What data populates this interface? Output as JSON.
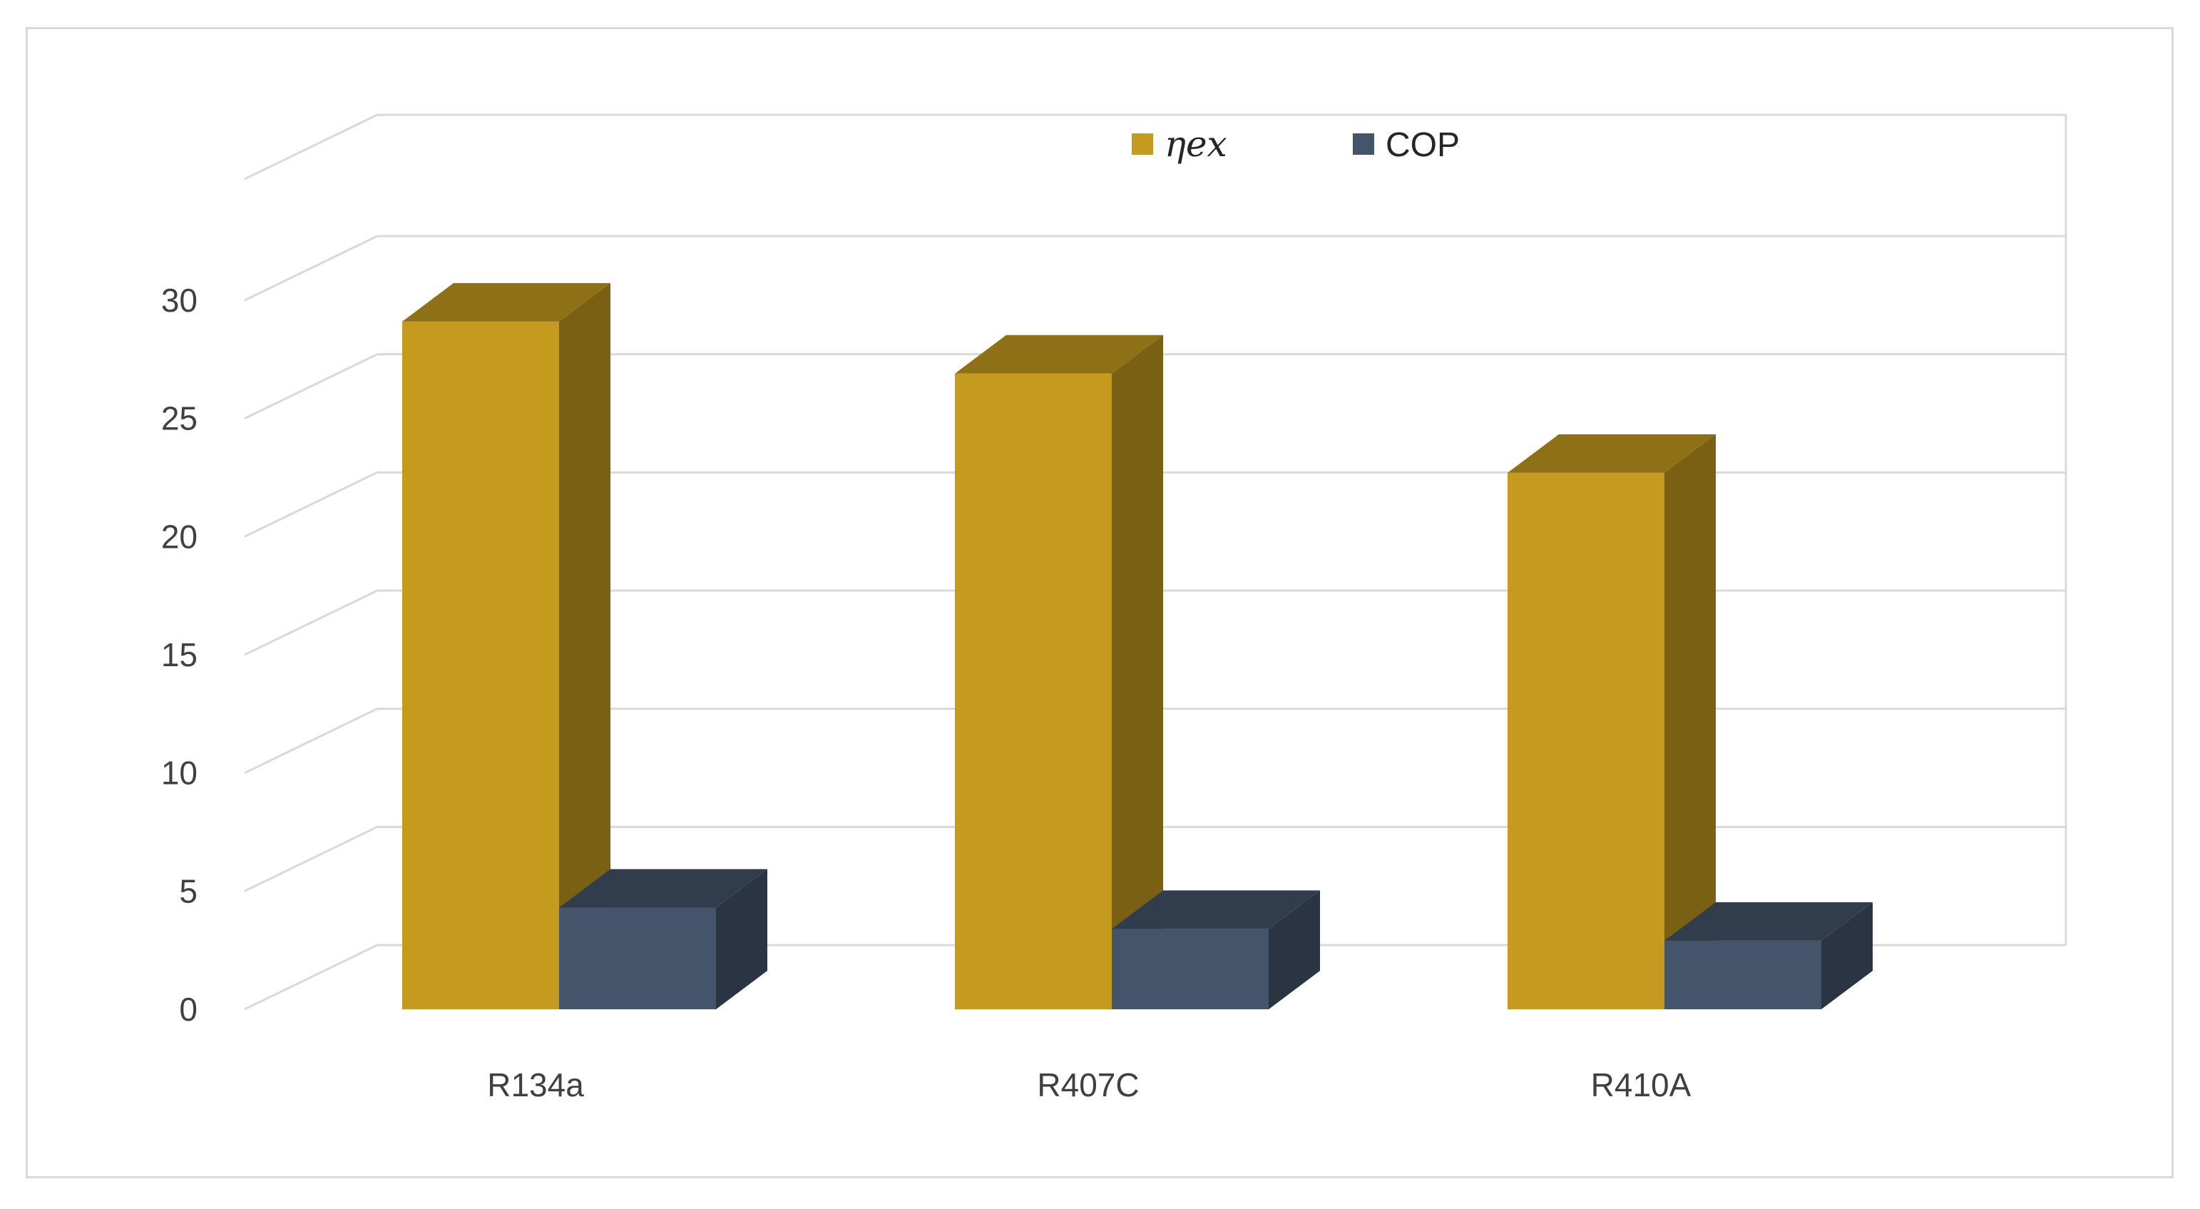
{
  "chart_data": {
    "type": "bar",
    "style": "3d-column",
    "categories": [
      "R134a",
      "R407C",
      "R410A"
    ],
    "series": [
      {
        "name": "ηex",
        "values": [
          29.1,
          26.9,
          22.7
        ],
        "color": "#c59b1f"
      },
      {
        "name": "COP",
        "values": [
          4.3,
          3.4,
          2.9
        ],
        "color": "#44546a"
      }
    ],
    "yticks": [
      0,
      5,
      10,
      15,
      20,
      25,
      30
    ],
    "ylim": [
      0,
      30
    ],
    "grid": true,
    "legend_position": "top"
  }
}
